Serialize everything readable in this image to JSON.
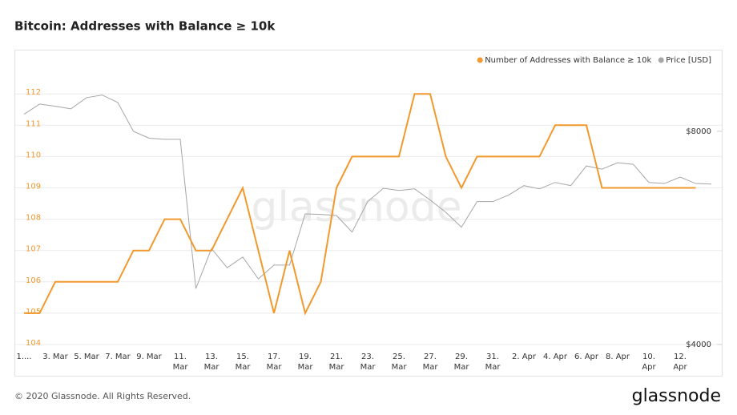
{
  "title": "Bitcoin: Addresses with Balance ≥ 10k",
  "footer": "© 2020 Glassnode. All Rights Reserved.",
  "logo": "glassnode",
  "watermark": "glassnode",
  "chart_data": {
    "type": "line",
    "categories": [
      "1....",
      null,
      "3. Mar",
      null,
      "5. Mar",
      null,
      "7. Mar",
      null,
      "9. Mar",
      null,
      "11. Mar",
      null,
      "13. Mar",
      null,
      "15. Mar",
      null,
      "17. Mar",
      null,
      "19. Mar",
      null,
      "21. Mar",
      null,
      "23. Mar",
      null,
      "25. Mar",
      null,
      "27. Mar",
      null,
      "29. Mar",
      null,
      "31. Mar",
      null,
      "2. Apr",
      null,
      "4. Apr",
      null,
      "6. Apr",
      null,
      "8. Apr",
      null,
      "10. Apr",
      null,
      "12. Apr",
      null,
      null
    ],
    "series": [
      {
        "name": "Number of Addresses with Balance ≥ 10k",
        "color": "#f2992e",
        "axis": "y",
        "values": [
          105,
          105,
          106,
          106,
          106,
          106,
          106,
          107,
          107,
          108,
          108,
          107,
          107,
          108,
          109,
          107,
          105,
          107,
          105,
          106,
          109,
          110,
          110,
          110,
          110,
          112,
          112,
          110,
          109,
          110,
          110,
          110,
          110,
          110,
          111,
          111,
          111,
          109,
          109,
          109,
          109,
          109,
          109,
          109,
          null
        ]
      },
      {
        "name": "Price [USD]",
        "color": "#a6a6a6",
        "axis": "y2",
        "values": [
          8320,
          8510,
          8470,
          8420,
          8630,
          8680,
          8540,
          8000,
          7870,
          7850,
          7850,
          5050,
          5800,
          5440,
          5640,
          5230,
          5490,
          5490,
          6450,
          6440,
          6420,
          6110,
          6680,
          6930,
          6890,
          6920,
          6710,
          6480,
          6200,
          6680,
          6680,
          6800,
          6980,
          6920,
          7040,
          6980,
          7350,
          7290,
          7410,
          7380,
          7040,
          7020,
          7140,
          7020,
          7010
        ]
      }
    ],
    "ylim": [
      104,
      112.9
    ],
    "yticks": [
      104,
      105,
      106,
      107,
      108,
      109,
      110,
      111,
      112
    ],
    "y2lim": [
      4000,
      9230
    ],
    "y2ticks": [
      {
        "value": 4000,
        "label": "$4000"
      },
      {
        "value": 8000,
        "label": "$8000"
      }
    ],
    "grid": true,
    "legend": "top-right"
  }
}
